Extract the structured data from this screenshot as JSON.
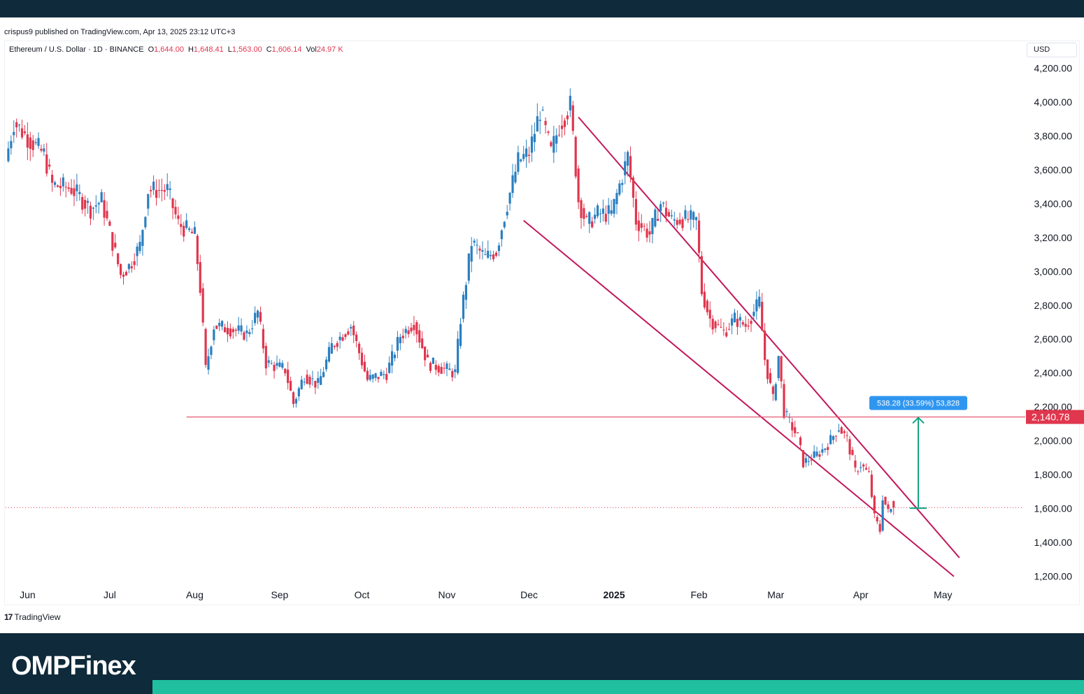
{
  "header": {
    "published_text": "crispus9 published on TradingView.com, Apr 13, 2025 23:12 UTC+3"
  },
  "legend": {
    "symbol": "Ethereum / U.S. Dollar · 1D · BINANCE",
    "open_label": "O",
    "open_value": "1,644.00",
    "high_label": "H",
    "high_value": "1,648.41",
    "low_label": "L",
    "low_value": "1,563.00",
    "close_label": "C",
    "close_value": "1,606.14",
    "vol_label": "Vol",
    "vol_value": "24.97 K"
  },
  "currency_label": "USD",
  "tradingview_label": "TradingView",
  "brand": {
    "text": "OMPFinex"
  },
  "colors": {
    "up": "#2a7fc0",
    "down": "#e0364e",
    "trendline": "#c2185b",
    "support": "#e45b72",
    "measure": "#0fa37f",
    "measure_label_bg": "#2f96f0",
    "price_label_bg": "#e0364e",
    "header_bg": "#0f2a3a",
    "accent": "#1fbf9f"
  },
  "chart_data": {
    "type": "candlestick",
    "y_axis": {
      "ticks": [
        1200,
        1400,
        1600,
        1800,
        2000,
        2200,
        2400,
        2600,
        2800,
        3000,
        3200,
        3400,
        3600,
        3800,
        4000,
        4200
      ],
      "tick_labels": [
        "1,200.00",
        "1,400.00",
        "1,600.00",
        "1,800.00",
        "2,000.00",
        "2,200.00",
        "2,400.00",
        "2,600.00",
        "2,800.00",
        "3,000.00",
        "3,200.00",
        "3,400.00",
        "3,600.00",
        "3,800.00",
        "4,000.00",
        "4,200.00"
      ],
      "ylim": [
        1170,
        4230
      ]
    },
    "x_axis": {
      "range": [
        "2024-05-24",
        "2025-05-30"
      ],
      "ticks": [
        {
          "date": "2024-06-01",
          "label": "Jun",
          "bold": false
        },
        {
          "date": "2024-07-01",
          "label": "Jul",
          "bold": false
        },
        {
          "date": "2024-08-01",
          "label": "Aug",
          "bold": false
        },
        {
          "date": "2024-09-01",
          "label": "Sep",
          "bold": false
        },
        {
          "date": "2024-10-01",
          "label": "Oct",
          "bold": false
        },
        {
          "date": "2024-11-01",
          "label": "Nov",
          "bold": false
        },
        {
          "date": "2024-12-01",
          "label": "Dec",
          "bold": false
        },
        {
          "date": "2025-01-01",
          "label": "2025",
          "bold": true
        },
        {
          "date": "2025-02-01",
          "label": "Feb",
          "bold": false
        },
        {
          "date": "2025-03-01",
          "label": "Mar",
          "bold": false
        },
        {
          "date": "2025-04-01",
          "label": "Apr",
          "bold": false
        },
        {
          "date": "2025-05-01",
          "label": "May",
          "bold": false
        }
      ]
    },
    "close_anchors": [
      [
        "2024-05-24",
        3650
      ],
      [
        "2024-05-27",
        3880
      ],
      [
        "2024-06-01",
        3790
      ],
      [
        "2024-06-07",
        3690
      ],
      [
        "2024-06-10",
        3510
      ],
      [
        "2024-06-17",
        3490
      ],
      [
        "2024-06-24",
        3370
      ],
      [
        "2024-06-28",
        3420
      ],
      [
        "2024-07-05",
        2980
      ],
      [
        "2024-07-08",
        3030
      ],
      [
        "2024-07-12",
        3150
      ],
      [
        "2024-07-15",
        3480
      ],
      [
        "2024-07-22",
        3480
      ],
      [
        "2024-07-26",
        3280
      ],
      [
        "2024-08-01",
        3210
      ],
      [
        "2024-08-03",
        2900
      ],
      [
        "2024-08-05",
        2420
      ],
      [
        "2024-08-08",
        2680
      ],
      [
        "2024-08-14",
        2660
      ],
      [
        "2024-08-20",
        2630
      ],
      [
        "2024-08-24",
        2760
      ],
      [
        "2024-08-27",
        2460
      ],
      [
        "2024-09-03",
        2420
      ],
      [
        "2024-09-06",
        2220
      ],
      [
        "2024-09-10",
        2390
      ],
      [
        "2024-09-15",
        2330
      ],
      [
        "2024-09-20",
        2560
      ],
      [
        "2024-09-27",
        2680
      ],
      [
        "2024-10-03",
        2360
      ],
      [
        "2024-10-10",
        2400
      ],
      [
        "2024-10-15",
        2620
      ],
      [
        "2024-10-20",
        2700
      ],
      [
        "2024-10-25",
        2460
      ],
      [
        "2024-11-04",
        2400
      ],
      [
        "2024-11-06",
        2720
      ],
      [
        "2024-11-10",
        3170
      ],
      [
        "2024-11-15",
        3080
      ],
      [
        "2024-11-19",
        3120
      ],
      [
        "2024-11-23",
        3400
      ],
      [
        "2024-11-27",
        3650
      ],
      [
        "2024-12-01",
        3700
      ],
      [
        "2024-12-05",
        3950
      ],
      [
        "2024-12-09",
        3700
      ],
      [
        "2024-12-12",
        3860
      ],
      [
        "2024-12-16",
        3980
      ],
      [
        "2024-12-19",
        3420
      ],
      [
        "2024-12-22",
        3280
      ],
      [
        "2024-12-26",
        3340
      ],
      [
        "2024-12-31",
        3340
      ],
      [
        "2025-01-06",
        3680
      ],
      [
        "2025-01-09",
        3300
      ],
      [
        "2025-01-14",
        3220
      ],
      [
        "2025-01-18",
        3400
      ],
      [
        "2025-01-22",
        3300
      ],
      [
        "2025-01-26",
        3310
      ],
      [
        "2025-01-31",
        3300
      ],
      [
        "2025-02-02",
        2880
      ],
      [
        "2025-02-05",
        2720
      ],
      [
        "2025-02-10",
        2640
      ],
      [
        "2025-02-14",
        2720
      ],
      [
        "2025-02-18",
        2680
      ],
      [
        "2025-02-23",
        2820
      ],
      [
        "2025-02-25",
        2480
      ],
      [
        "2025-02-28",
        2240
      ],
      [
        "2025-03-02",
        2500
      ],
      [
        "2025-03-04",
        2170
      ],
      [
        "2025-03-09",
        2020
      ],
      [
        "2025-03-11",
        1870
      ],
      [
        "2025-03-17",
        1930
      ],
      [
        "2025-03-20",
        1980
      ],
      [
        "2025-03-24",
        2080
      ],
      [
        "2025-03-27",
        2010
      ],
      [
        "2025-03-30",
        1820
      ],
      [
        "2025-04-01",
        1860
      ],
      [
        "2025-04-04",
        1800
      ],
      [
        "2025-04-06",
        1550
      ],
      [
        "2025-04-08",
        1470
      ],
      [
        "2025-04-09",
        1670
      ],
      [
        "2025-04-11",
        1580
      ],
      [
        "2025-04-13",
        1606
      ]
    ],
    "last_bar": {
      "date": "2025-04-13",
      "open": 1644.0,
      "high": 1648.41,
      "low": 1563.0,
      "close": 1606.14,
      "volume": "24.97 K"
    },
    "current_price": 1606.14,
    "upper_channel": {
      "start": [
        "2024-12-19",
        3910
      ],
      "end": [
        "2025-05-07",
        1310
      ]
    },
    "lower_channel": {
      "start": [
        "2024-11-29",
        3300
      ],
      "end": [
        "2025-05-05",
        1200
      ]
    },
    "support_level": {
      "value": 2140.78,
      "label": "2,140.78",
      "start_date": "2024-07-29"
    },
    "measure": {
      "date": "2025-04-22",
      "from": 1602.5,
      "to": 2140.78,
      "label": "538.28 (33.59%) 53,828"
    }
  }
}
